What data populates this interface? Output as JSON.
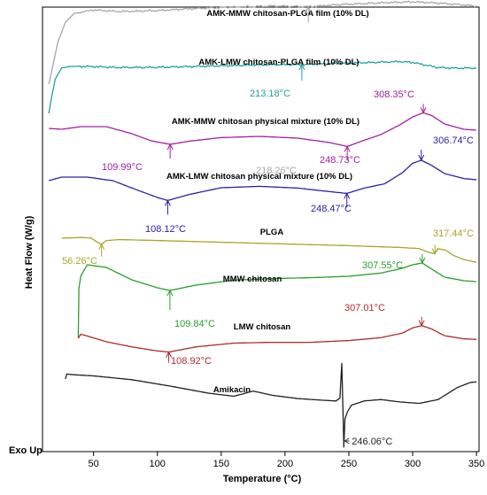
{
  "chart_data": {
    "type": "line",
    "xlabel": "Temperature (°C)",
    "ylabel": "Heat Flow (W/g)",
    "corner_note": "Exo Up",
    "xlim": [
      10,
      352
    ],
    "xticks": [
      50,
      100,
      150,
      200,
      250,
      300,
      350
    ],
    "grid": false,
    "series": [
      {
        "name": "AMK-MMW chitosan-PLGA film (10% DL)",
        "color": "#a6a6a6",
        "x": [
          15,
          18,
          22,
          28,
          35,
          50,
          70,
          100,
          130,
          160,
          190,
          218.26,
          240,
          270,
          300,
          320,
          340,
          350
        ],
        "y": [
          0.0,
          0.8,
          1.9,
          2.8,
          3.2,
          3.35,
          3.28,
          3.32,
          3.42,
          3.48,
          3.53,
          3.5,
          3.58,
          3.66,
          3.72,
          3.66,
          3.58,
          3.52
        ],
        "annotations": [
          {
            "x": 218.26,
            "text": "218.26°C"
          }
        ]
      },
      {
        "name": "AMK-LMW chitosan-PLGA film (10% DL)",
        "color": "#1ea1a0",
        "x": [
          15,
          17,
          20,
          25,
          32,
          45,
          70,
          100,
          130,
          160,
          190,
          213.18,
          240,
          270,
          290,
          300,
          310,
          320,
          335,
          350
        ],
        "y": [
          0.0,
          0.7,
          1.55,
          2.05,
          2.12,
          2.12,
          2.07,
          2.08,
          2.12,
          2.16,
          2.2,
          2.2,
          2.26,
          2.3,
          2.34,
          2.3,
          2.18,
          2.07,
          2.04,
          2.05
        ],
        "annotations": [
          {
            "x": 213.18,
            "text": "213.18°C"
          }
        ]
      },
      {
        "name": "AMK-MMW chitosan physical mixture (10% DL)",
        "color": "#a120a5",
        "x": [
          15,
          25,
          40,
          60,
          80,
          95,
          109.99,
          125,
          150,
          180,
          210,
          235,
          248.73,
          260,
          275,
          290,
          300,
          308.35,
          315,
          325,
          340,
          350
        ],
        "y": [
          0.0,
          -0.05,
          0.1,
          0.1,
          -0.3,
          -0.7,
          -0.9,
          -0.72,
          -0.52,
          -0.45,
          -0.55,
          -0.8,
          -1.02,
          -0.72,
          -0.35,
          0.2,
          0.65,
          0.88,
          0.72,
          0.25,
          -0.05,
          -0.1
        ],
        "annotations": [
          {
            "x": 109.99,
            "text": "109.99°C"
          },
          {
            "x": 248.73,
            "text": "248.73°C"
          },
          {
            "x": 308.35,
            "text": "308.35°C"
          }
        ]
      },
      {
        "name": "AMK-LMW chitosan physical mixture (10% DL)",
        "color": "#2a24a2",
        "x": [
          15,
          25,
          45,
          65,
          85,
          100,
          108.12,
          125,
          150,
          180,
          210,
          235,
          248.47,
          262,
          278,
          292,
          300,
          306.74,
          314,
          325,
          340,
          350
        ],
        "y": [
          0.0,
          0.2,
          0.2,
          0.0,
          -0.55,
          -0.95,
          -1.12,
          -0.78,
          -0.4,
          -0.32,
          -0.42,
          -0.62,
          -0.72,
          -0.42,
          -0.18,
          0.45,
          0.98,
          1.15,
          0.9,
          0.4,
          0.12,
          0.05
        ],
        "annotations": [
          {
            "x": 108.12,
            "text": "108.12°C"
          },
          {
            "x": 248.47,
            "text": "248.47°C"
          },
          {
            "x": 306.74,
            "text": "306.74°C"
          }
        ]
      },
      {
        "name": "PLGA",
        "color": "#a6a62a",
        "x": [
          25,
          30,
          40,
          48,
          53,
          56.26,
          60,
          70,
          100,
          150,
          200,
          250,
          290,
          305,
          312,
          317.44,
          320,
          326,
          332,
          340,
          350
        ],
        "y": [
          0.0,
          0.02,
          0.06,
          0.02,
          -0.35,
          -0.52,
          -0.2,
          -0.12,
          -0.2,
          -0.35,
          -0.5,
          -0.65,
          -0.8,
          -0.9,
          -1.2,
          -1.35,
          -0.9,
          -1.05,
          -1.5,
          -1.85,
          -2.1
        ],
        "annotations": [
          {
            "x": 56.26,
            "text": "56.26°C"
          },
          {
            "x": 317.44,
            "text": "317.44°C"
          }
        ]
      },
      {
        "name": "MMW chitosan",
        "color": "#2a9e2a",
        "x": [
          38,
          38.5,
          40,
          45,
          60,
          80,
          100,
          109.84,
          130,
          160,
          190,
          220,
          250,
          275,
          292,
          300,
          307.55,
          315,
          325,
          340,
          350
        ],
        "y": [
          0.0,
          2.8,
          3.5,
          4.15,
          4.0,
          3.3,
          2.85,
          2.7,
          3.0,
          3.28,
          3.37,
          3.42,
          3.5,
          3.68,
          3.95,
          4.15,
          4.25,
          3.9,
          3.45,
          3.25,
          3.2
        ],
        "annotations": [
          {
            "x": 109.84,
            "text": "109.84°C"
          },
          {
            "x": 307.55,
            "text": "307.55°C"
          }
        ]
      },
      {
        "name": "LMW chitosan",
        "color": "#b02a2a",
        "x": [
          38,
          40,
          45,
          60,
          80,
          100,
          108.92,
          130,
          160,
          190,
          220,
          250,
          275,
          292,
          300,
          307.01,
          315,
          325,
          340,
          350
        ],
        "y": [
          0.0,
          0.35,
          0.2,
          -0.3,
          -0.75,
          -1.1,
          -1.2,
          -0.75,
          -0.42,
          -0.35,
          -0.35,
          -0.2,
          0.05,
          0.45,
          0.9,
          1.1,
          0.8,
          0.22,
          -0.05,
          -0.1
        ],
        "annotations": [
          {
            "x": 108.92,
            "text": "108.92°C"
          },
          {
            "x": 307.01,
            "text": "307.01°C"
          }
        ]
      },
      {
        "name": "Amikacin",
        "color": "#1f1f1f",
        "x": [
          28,
          29,
          35,
          50,
          80,
          110,
          140,
          160,
          175,
          190,
          210,
          230,
          240,
          243,
          244.5,
          245.5,
          246.06,
          247,
          249,
          252,
          262,
          275,
          290,
          305,
          320,
          335,
          345,
          350
        ],
        "y": [
          0.0,
          0.35,
          0.3,
          0.22,
          -0.05,
          -0.5,
          -1.0,
          -1.22,
          -0.85,
          -1.15,
          -1.38,
          -1.5,
          -1.55,
          -1.35,
          1.1,
          -2.6,
          -4.8,
          -2.8,
          -2.3,
          -1.85,
          -1.55,
          -1.45,
          -1.62,
          -1.72,
          -1.45,
          -0.6,
          -0.25,
          -0.2
        ],
        "annotations": [
          {
            "x": 246.06,
            "text": "246.06°C"
          }
        ]
      }
    ]
  }
}
